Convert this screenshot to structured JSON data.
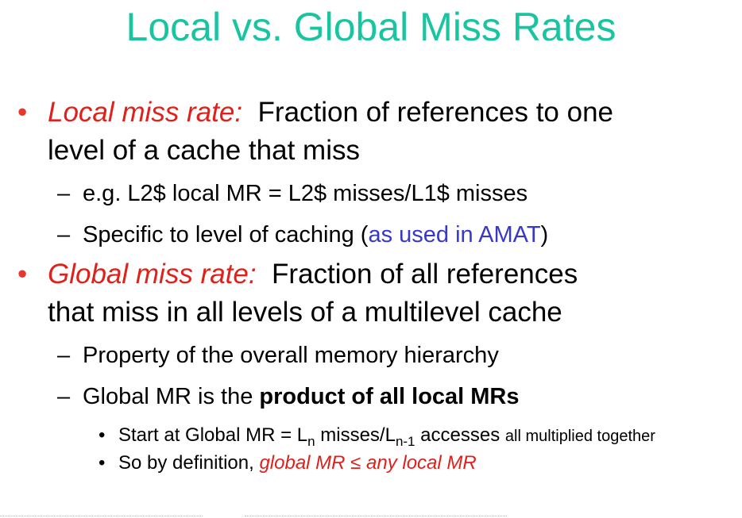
{
  "title": "Local vs. Global Miss Rates",
  "bullets": [
    {
      "term": "Local miss rate:",
      "line1_rest": "Fraction of references to one",
      "line2": "level of a cache that miss",
      "subs": [
        {
          "text": "e.g. L2$ local MR = L2$ misses/L1$ misses"
        },
        {
          "before": "Specific to level of caching (",
          "highlight": "as used in AMAT",
          "after": ")"
        }
      ]
    },
    {
      "term": "Global miss rate:",
      "line1_rest": "Fraction of all references",
      "line2": "that miss in all levels of a multilevel cache",
      "subs": [
        {
          "text": "Property of the overall memory hierarchy"
        },
        {
          "before": "Global MR is the ",
          "bold": "product of all local MRs"
        }
      ],
      "subsubs": [
        {
          "p1": "Start at Global MR = L",
          "sub1": "n",
          "p2": " misses/L",
          "sub2": "n-1",
          "p3": " accesses ",
          "small": "all multiplied together"
        },
        {
          "before": "So by definition, ",
          "italic": "global MR ≤ any local MR"
        }
      ]
    }
  ],
  "colors": {
    "title": "#19c5a0",
    "bullet": "#e8362b",
    "term": "#e0201a",
    "link": "#3737c8"
  }
}
